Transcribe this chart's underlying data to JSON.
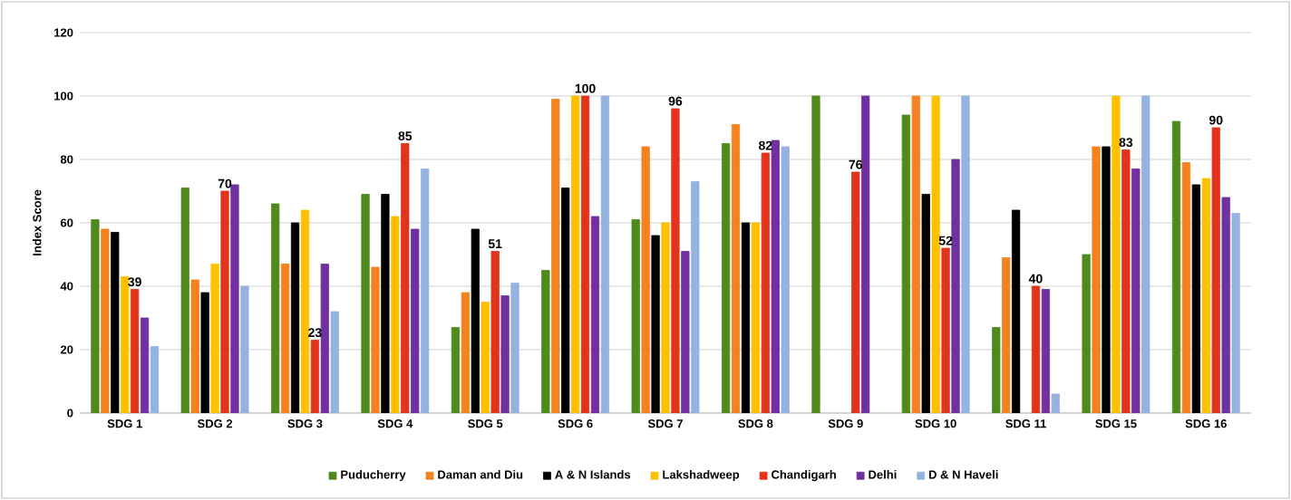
{
  "chart_data": {
    "type": "bar",
    "ylabel": "Index Score",
    "categories": [
      "SDG 1",
      "SDG 2",
      "SDG 3",
      "SDG 4",
      "SDG 5",
      "SDG 6",
      "SDG 7",
      "SDG 8",
      "SDG 9",
      "SDG 10",
      "SDG 11",
      "SDG 15",
      "SDG 16"
    ],
    "series": [
      {
        "name": "Puducherry",
        "color": "#4e8a1c",
        "values": [
          61,
          71,
          66,
          69,
          27,
          45,
          61,
          85,
          100,
          94,
          27,
          50,
          92
        ]
      },
      {
        "name": "Daman and Diu",
        "color": "#f58220",
        "values": [
          58,
          42,
          47,
          46,
          38,
          99,
          84,
          91,
          null,
          100,
          49,
          84,
          79
        ]
      },
      {
        "name": "A & N Islands",
        "color": "#000000",
        "values": [
          57,
          38,
          60,
          69,
          58,
          71,
          56,
          60,
          null,
          69,
          64,
          84,
          72
        ]
      },
      {
        "name": "Lakshadweep",
        "color": "#ffc000",
        "values": [
          43,
          47,
          64,
          62,
          35,
          100,
          60,
          60,
          null,
          100,
          null,
          100,
          74
        ]
      },
      {
        "name": "Chandigarh",
        "color": "#e2341c",
        "values": [
          39,
          70,
          23,
          85,
          51,
          100,
          96,
          82,
          76,
          52,
          40,
          83,
          90
        ],
        "value_labels": [
          "39",
          "70",
          "23",
          "85",
          "51",
          "100",
          "96",
          "82",
          "76",
          "52",
          "40",
          "83",
          "90"
        ]
      },
      {
        "name": "Delhi",
        "color": "#7030a0",
        "values": [
          30,
          72,
          47,
          58,
          37,
          62,
          51,
          86,
          100,
          80,
          39,
          77,
          68
        ]
      },
      {
        "name": "D & N Haveli",
        "color": "#95b3e0",
        "values": [
          21,
          40,
          32,
          77,
          41,
          100,
          73,
          84,
          null,
          100,
          6,
          100,
          63
        ]
      }
    ],
    "ylim": [
      0,
      120
    ],
    "yticks": [
      0,
      20,
      40,
      60,
      80,
      100,
      120
    ],
    "grid": "y",
    "legend": "bottom"
  }
}
